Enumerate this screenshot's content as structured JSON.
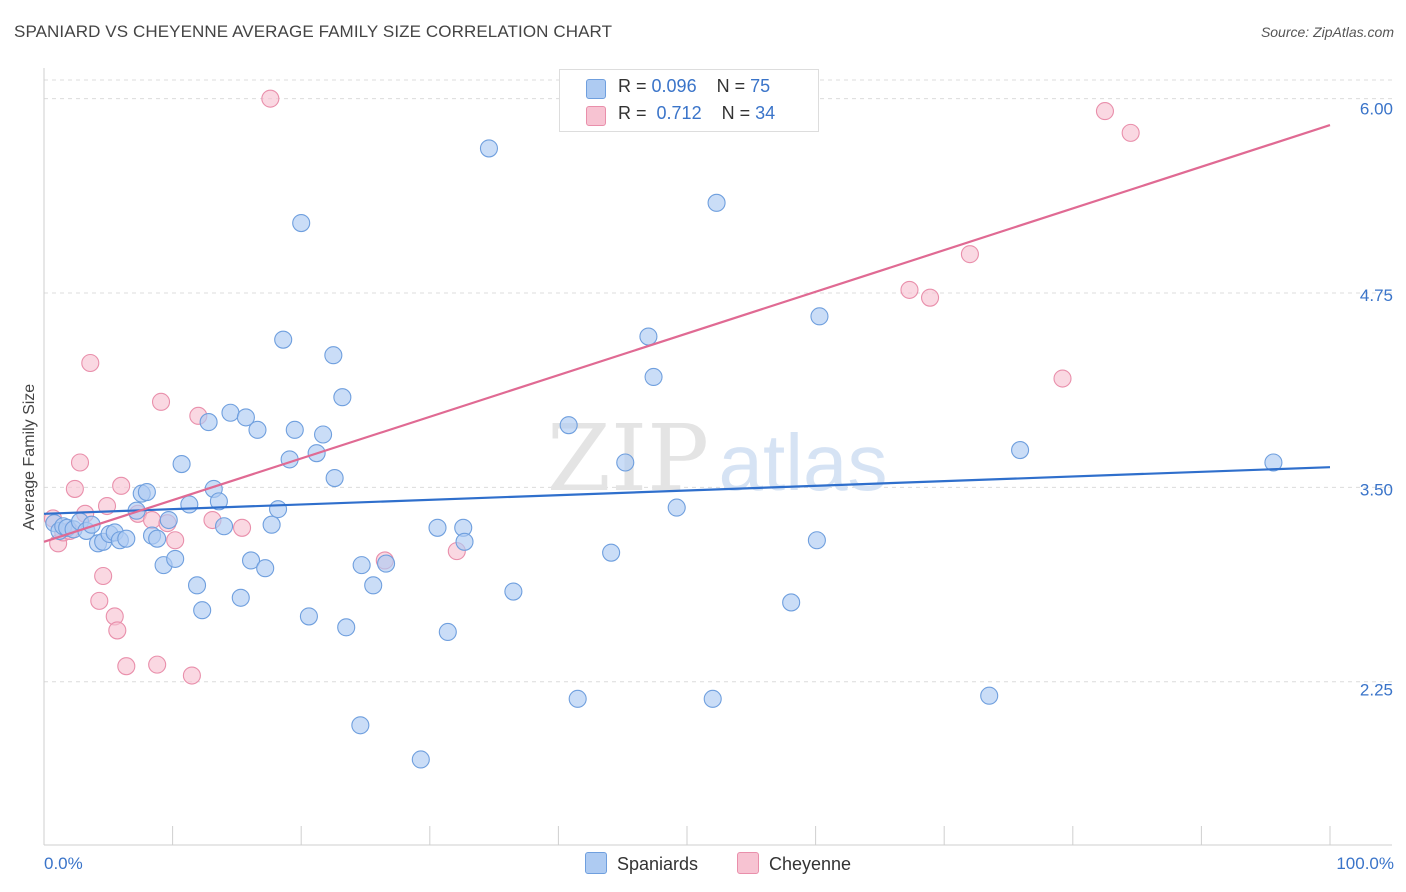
{
  "header": {
    "title": "SPANIARD VS CHEYENNE AVERAGE FAMILY SIZE CORRELATION CHART",
    "source": "Source: ZipAtlas.com"
  },
  "watermark": {
    "zip": "ZIP",
    "atlas": "atlas"
  },
  "legend": {
    "rows": [
      {
        "r_label": "R =",
        "r_value": "0.096",
        "n_label": "N =",
        "n_value": "75"
      },
      {
        "r_label": "R =",
        "r_value": "0.712",
        "n_label": "N =",
        "n_value": "34"
      }
    ]
  },
  "bottom_legend": {
    "spaniards": "Spaniards",
    "cheyenne": "Cheyenne"
  },
  "colors": {
    "spaniards_fill": "#aecbf2",
    "spaniards_stroke": "#6f9fde",
    "spaniards_line": "#2f6fcc",
    "cheyenne_fill": "#f7c3d2",
    "cheyenne_stroke": "#e98fab",
    "cheyenne_line": "#e06a93",
    "axis_text": "#3a74c9"
  },
  "chart_data": {
    "type": "scatter",
    "title": "SPANIARD VS CHEYENNE AVERAGE FAMILY SIZE CORRELATION CHART",
    "xlabel": "",
    "ylabel": "Average Family Size",
    "xlim": [
      0,
      100
    ],
    "ylim": [
      1.2,
      6.12
    ],
    "x_tick_labels": [
      "0.0%",
      "100.0%"
    ],
    "y_ticks": [
      2.25,
      3.5,
      4.75,
      6.0
    ],
    "y_tick_labels": [
      "2.25",
      "3.50",
      "4.75",
      "6.00"
    ],
    "grid": true,
    "legend_position": "top-center",
    "series": [
      {
        "name": "Spaniards",
        "r": 0.096,
        "n": 75,
        "trend": {
          "x": [
            0,
            100
          ],
          "y": [
            3.33,
            3.63
          ]
        },
        "points": [
          [
            0.8,
            3.27
          ],
          [
            1.2,
            3.22
          ],
          [
            1.5,
            3.25
          ],
          [
            1.8,
            3.24
          ],
          [
            2.3,
            3.23
          ],
          [
            2.8,
            3.28
          ],
          [
            3.3,
            3.22
          ],
          [
            3.7,
            3.26
          ],
          [
            4.2,
            3.14
          ],
          [
            4.6,
            3.15
          ],
          [
            5.1,
            3.2
          ],
          [
            5.5,
            3.21
          ],
          [
            5.9,
            3.16
          ],
          [
            6.4,
            3.17
          ],
          [
            7.2,
            3.35
          ],
          [
            7.6,
            3.46
          ],
          [
            8.0,
            3.47
          ],
          [
            8.4,
            3.19
          ],
          [
            8.8,
            3.17
          ],
          [
            9.3,
            3.0
          ],
          [
            9.7,
            3.29
          ],
          [
            10.2,
            3.04
          ],
          [
            10.7,
            3.65
          ],
          [
            11.3,
            3.39
          ],
          [
            11.9,
            2.87
          ],
          [
            12.3,
            2.71
          ],
          [
            12.8,
            3.92
          ],
          [
            13.2,
            3.49
          ],
          [
            13.6,
            3.41
          ],
          [
            14.0,
            3.25
          ],
          [
            14.5,
            3.98
          ],
          [
            15.3,
            2.79
          ],
          [
            15.7,
            3.95
          ],
          [
            16.1,
            3.03
          ],
          [
            16.6,
            3.87
          ],
          [
            17.2,
            2.98
          ],
          [
            17.7,
            3.26
          ],
          [
            18.2,
            3.36
          ],
          [
            18.6,
            4.45
          ],
          [
            19.1,
            3.68
          ],
          [
            19.5,
            3.87
          ],
          [
            20.0,
            5.2
          ],
          [
            20.6,
            2.67
          ],
          [
            21.2,
            3.72
          ],
          [
            21.7,
            3.84
          ],
          [
            22.5,
            4.35
          ],
          [
            22.6,
            3.56
          ],
          [
            23.2,
            4.08
          ],
          [
            23.5,
            2.6
          ],
          [
            24.6,
            1.97
          ],
          [
            24.7,
            3.0
          ],
          [
            25.6,
            2.87
          ],
          [
            26.6,
            3.01
          ],
          [
            29.3,
            1.75
          ],
          [
            30.6,
            3.24
          ],
          [
            31.4,
            2.57
          ],
          [
            32.6,
            3.24
          ],
          [
            32.7,
            3.15
          ],
          [
            34.6,
            5.68
          ],
          [
            36.5,
            2.83
          ],
          [
            40.8,
            3.9
          ],
          [
            41.5,
            2.14
          ],
          [
            44.1,
            3.08
          ],
          [
            45.2,
            3.66
          ],
          [
            47.0,
            4.47
          ],
          [
            47.4,
            4.21
          ],
          [
            49.2,
            3.37
          ],
          [
            52.0,
            2.14
          ],
          [
            52.3,
            5.33
          ],
          [
            58.1,
            2.76
          ],
          [
            60.1,
            3.16
          ],
          [
            60.3,
            4.6
          ],
          [
            73.5,
            2.16
          ],
          [
            75.9,
            3.74
          ],
          [
            95.6,
            3.66
          ]
        ]
      },
      {
        "name": "Cheyenne",
        "r": 0.712,
        "n": 34,
        "trend": {
          "x": [
            0,
            100
          ],
          "y": [
            3.15,
            5.83
          ]
        },
        "points": [
          [
            0.7,
            3.3
          ],
          [
            1.1,
            3.14
          ],
          [
            1.5,
            3.21
          ],
          [
            2.0,
            3.22
          ],
          [
            2.4,
            3.49
          ],
          [
            2.8,
            3.66
          ],
          [
            3.2,
            3.33
          ],
          [
            3.6,
            4.3
          ],
          [
            4.3,
            2.77
          ],
          [
            4.6,
            2.93
          ],
          [
            4.9,
            3.38
          ],
          [
            5.5,
            2.67
          ],
          [
            5.7,
            2.58
          ],
          [
            6.0,
            3.51
          ],
          [
            6.4,
            2.35
          ],
          [
            7.3,
            3.33
          ],
          [
            8.4,
            3.29
          ],
          [
            8.8,
            2.36
          ],
          [
            9.1,
            4.05
          ],
          [
            9.6,
            3.27
          ],
          [
            10.2,
            3.16
          ],
          [
            11.5,
            2.29
          ],
          [
            12.0,
            3.96
          ],
          [
            13.1,
            3.29
          ],
          [
            15.4,
            3.24
          ],
          [
            17.6,
            6.0
          ],
          [
            26.5,
            3.03
          ],
          [
            32.1,
            3.09
          ],
          [
            67.3,
            4.77
          ],
          [
            68.9,
            4.72
          ],
          [
            72.0,
            5.0
          ],
          [
            79.2,
            4.2
          ],
          [
            82.5,
            5.92
          ],
          [
            84.5,
            5.78
          ]
        ]
      }
    ]
  }
}
